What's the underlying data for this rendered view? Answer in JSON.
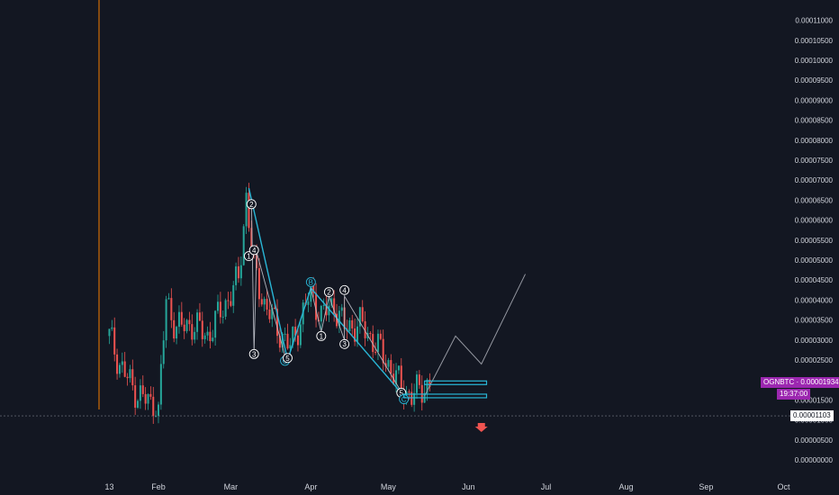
{
  "chart_data": {
    "type": "candlestick",
    "symbol_tag": "OGNBTC · 0.00001934",
    "countdown": "19:37:00",
    "low_tag": "0.00001103",
    "yticks": [
      "0.00011000",
      "0.00010500",
      "0.00010000",
      "0.00009500",
      "0.00009000",
      "0.00008500",
      "0.00008000",
      "0.00007500",
      "0.00007000",
      "0.00006500",
      "0.00006000",
      "0.00005500",
      "0.00005000",
      "0.00004500",
      "0.00004000",
      "0.00003500",
      "0.00003000",
      "0.00002500",
      "0.00002000",
      "0.00001500",
      "0.00001000",
      "0.00000500",
      "0.00000000"
    ],
    "xticks": [
      "13",
      "Feb",
      "Mar",
      "Apr",
      "May",
      "Jun",
      "Jul",
      "Aug",
      "Sep",
      "Oct"
    ],
    "colors": {
      "up": "#26a69a",
      "down": "#ef5350",
      "wave": "#29b6d6",
      "projection": "#9598a1",
      "divider": "#f57c00"
    },
    "candle_close_path": [
      [
        "Jan 13",
        3.1e-05
      ],
      [
        "Jan 17",
        2.4e-05
      ],
      [
        "Jan 22",
        1.8e-05
      ],
      [
        "Jan 27",
        1.5e-05
      ],
      [
        "Feb 1",
        1.2e-05
      ],
      [
        "Feb 4",
        4e-05
      ],
      [
        "Feb 8",
        3.3e-05
      ],
      [
        "Feb 14",
        3.4e-05
      ],
      [
        "Feb 20",
        3.1e-05
      ],
      [
        "Feb 26",
        3.8e-05
      ],
      [
        "Mar 4",
        4.5e-05
      ],
      [
        "Mar 7",
        6.6e-05
      ],
      [
        "Mar 10",
        4.8e-05
      ],
      [
        "Mar 14",
        3.9e-05
      ],
      [
        "Mar 20",
        3.2e-05
      ],
      [
        "Mar 24",
        2.8e-05
      ],
      [
        "Apr 1",
        4.2e-05
      ],
      [
        "Apr 5",
        3.6e-05
      ],
      [
        "Apr 10",
        3.9e-05
      ],
      [
        "Apr 14",
        3.3e-05
      ],
      [
        "Apr 20",
        3.4e-05
      ],
      [
        "Apr 25",
        3e-05
      ],
      [
        "May 1",
        2.4e-05
      ],
      [
        "May 6",
        1.8e-05
      ],
      [
        "May 10",
        1.6e-05
      ],
      [
        "May 14",
        1.8e-05
      ],
      [
        "May 18",
        1.93e-05
      ]
    ],
    "elliott_waves": [
      {
        "label": "2",
        "date": "Mar 9",
        "price": 6.4e-05
      },
      {
        "label": "1",
        "date": "Mar 8",
        "price": 5.1e-05
      },
      {
        "label": "4",
        "date": "Mar 10",
        "price": 5.25e-05
      },
      {
        "label": "3",
        "date": "Mar 10",
        "price": 2.65e-05
      },
      {
        "label": "C",
        "date": "Mar 22",
        "price": 2.48e-05
      },
      {
        "label": "5",
        "date": "Mar 23",
        "price": 2.55e-05
      },
      {
        "label": "B",
        "date": "Apr 1",
        "price": 4.45e-05
      },
      {
        "label": "2",
        "date": "Apr 8",
        "price": 4.2e-05
      },
      {
        "label": "4",
        "date": "Apr 14",
        "price": 4.25e-05
      },
      {
        "label": "1",
        "date": "Apr 5",
        "price": 3.1e-05
      },
      {
        "label": "3",
        "date": "Apr 14",
        "price": 2.9e-05
      },
      {
        "label": "5",
        "date": "May 6",
        "price": 1.68e-05
      },
      {
        "label": "C",
        "date": "May 7",
        "price": 1.52e-05
      }
    ],
    "projection_path": [
      [
        "May 15",
        1.6e-05
      ],
      [
        "May 27",
        3.1e-05
      ],
      [
        "Jun 6",
        2.4e-05
      ],
      [
        "Jun 23",
        4.65e-05
      ]
    ],
    "zones": [
      {
        "from": "May 15",
        "to": "Jun 8",
        "price": 1.93e-05
      },
      {
        "from": "May 7",
        "to": "Jun 8",
        "price": 1.6e-05
      }
    ]
  }
}
